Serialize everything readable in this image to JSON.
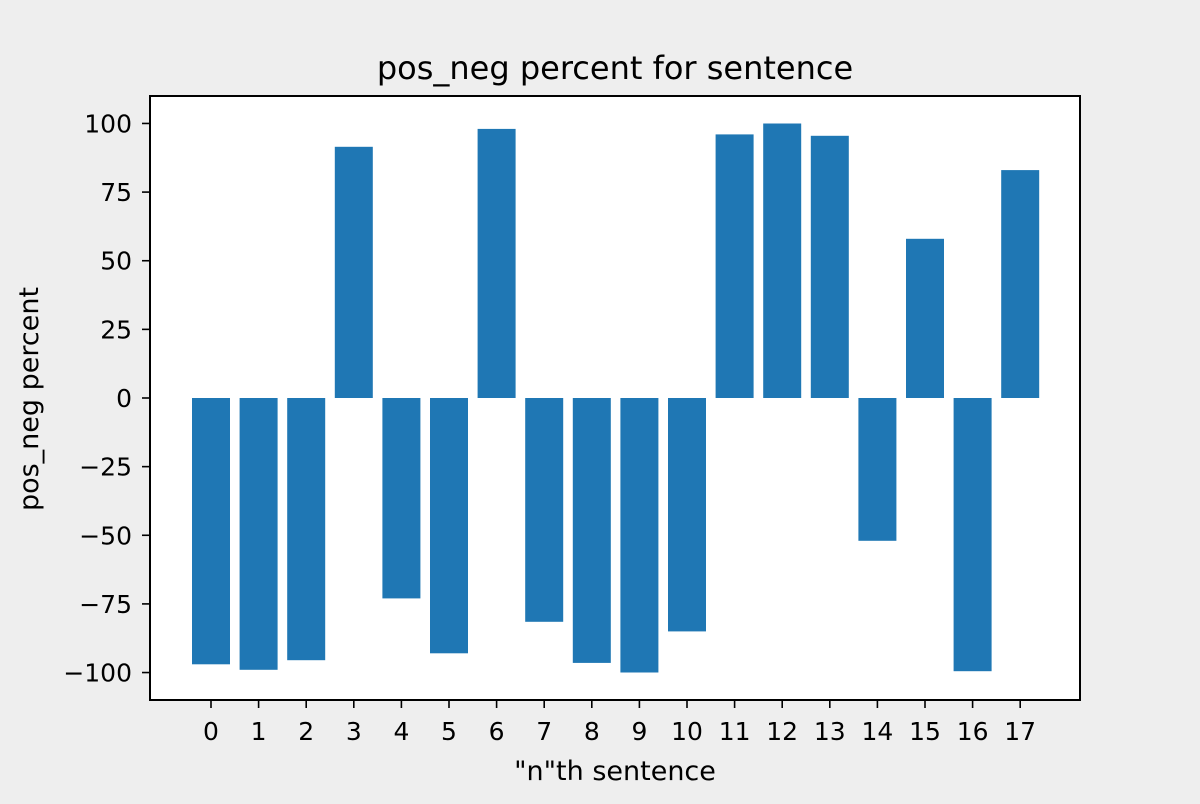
{
  "chart_data": {
    "type": "bar",
    "title": "pos_neg percent for sentence",
    "xlabel": "\"n\"th sentence",
    "ylabel": "pos_neg percent",
    "categories": [
      "0",
      "1",
      "2",
      "3",
      "4",
      "5",
      "6",
      "7",
      "8",
      "9",
      "10",
      "11",
      "12",
      "13",
      "14",
      "15",
      "16",
      "17"
    ],
    "values": [
      -97,
      -99,
      -95.5,
      91.5,
      -73,
      -93,
      98,
      -81.5,
      -96.5,
      -100,
      -85,
      96,
      100,
      95.5,
      -52,
      58,
      -99.5,
      83
    ],
    "ylim": [
      -110,
      110
    ],
    "yticks": [
      -100,
      -75,
      -50,
      -25,
      0,
      25,
      50,
      75,
      100
    ],
    "ytick_labels": [
      "−100",
      "−75",
      "−50",
      "−25",
      "0",
      "25",
      "50",
      "75",
      "100"
    ],
    "grid": false,
    "legend": "none",
    "colors": {
      "bar": "#1f77b4",
      "plot_background": "#ffffff",
      "figure_background": "#eeeeee",
      "axes": "#000000"
    }
  }
}
